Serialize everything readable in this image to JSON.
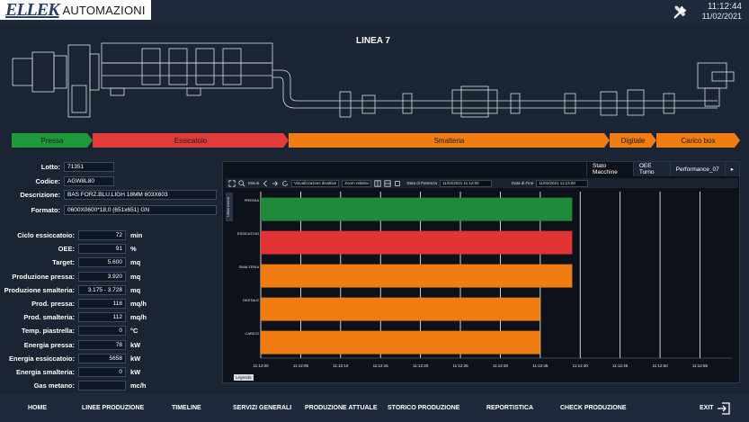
{
  "header": {
    "logo_main": "ELLEK",
    "logo_sub": "AUTOMAZIONI",
    "time": "11:12:44",
    "date": "11/02/2021",
    "tools_icon": "tools-icon"
  },
  "line_title": "LINEA 7",
  "process_segments": [
    {
      "label": "Pressa",
      "color": "#1e9a3c"
    },
    {
      "label": "Essicatoio",
      "color": "#e23b3b"
    },
    {
      "label": "Smalteria",
      "color": "#f07c12"
    },
    {
      "label": "Digitale",
      "color": "#f07c12"
    },
    {
      "label": "Carico box",
      "color": "#f07c12"
    }
  ],
  "info": {
    "lotto": {
      "label": "Lotto:",
      "value": "71351"
    },
    "codice": {
      "label": "Codice:",
      "value": "AGW8L80"
    },
    "descrizione": {
      "label": "Descrizione:",
      "value": "BAS FORZ.BLU.LIGH 18MM 603X603"
    },
    "formato": {
      "label": "Formato:",
      "value": "0600X0600*18,0 (651x651) GN"
    }
  },
  "metrics": [
    {
      "label": "Ciclo essiccatoio:",
      "value": "72",
      "unit": "min"
    },
    {
      "label": "OEE:",
      "value": "91",
      "unit": "%"
    },
    {
      "label": "Target:",
      "value": "5.600",
      "unit": "mq"
    },
    {
      "label": "Produzione pressa:",
      "value": "3.920",
      "unit": "mq"
    },
    {
      "label": "Produzione smalteria:",
      "value": "3.175 - 3.728",
      "unit": "mq"
    },
    {
      "label": "Prod. pressa:",
      "value": "118",
      "unit": "mq/h"
    },
    {
      "label": "Prod. smalteria:",
      "value": "112",
      "unit": "mq/h"
    },
    {
      "label": "Temp. piastrella:",
      "value": "0",
      "unit": "°C"
    },
    {
      "label": "Energia pressa:",
      "value": "78",
      "unit": "kW"
    },
    {
      "label": "Energia essiccatoio:",
      "value": "5658",
      "unit": "kW"
    },
    {
      "label": "Energia smalteria:",
      "value": "0",
      "unit": "kW"
    },
    {
      "label": "Gas metano:",
      "value": "",
      "unit": "mc/h"
    }
  ],
  "chart_panel": {
    "tabs": [
      "Stato Macchine",
      "OEE Turno",
      "Performance_07"
    ],
    "toolbar": {
      "minuti": "Minuti",
      "visualizza": "Visualizzazioni disattive",
      "zoom": "Zoom relativo",
      "data_partenza_label": "Data di Partenza",
      "data_partenza_value": "11/02/2021 11:12:00",
      "data_fine_label": "Data di Fine",
      "data_fine_value": "11/02/2021 11:13:00"
    },
    "side_tab": "Ultimi eventi",
    "legend_button": "Legenda"
  },
  "chart_data": {
    "type": "gantt",
    "rows": [
      {
        "name": "PRESSA",
        "color": "#1e8a3a",
        "start": "11:12:00",
        "end": "11:12:39"
      },
      {
        "name": "ESSICATOIO",
        "color": "#e23434",
        "start": "11:12:00",
        "end": "11:12:39"
      },
      {
        "name": "SMALTERIA",
        "color": "#f07c12",
        "start": "11:12:00",
        "end": "11:12:39"
      },
      {
        "name": "DIGITALE",
        "color": "#f07c12",
        "start": "11:12:00",
        "end": "11:12:35"
      },
      {
        "name": "CARICO",
        "color": "#f07c12",
        "start": "11:12:00",
        "end": "11:12:35"
      }
    ],
    "x_ticks": [
      "11:12:00",
      "11:12:05",
      "11:12:10",
      "11:12:15",
      "11:12:20",
      "11:12:25",
      "11:12:30",
      "11:12:35",
      "11:12:40",
      "11:12:45",
      "11:12:50",
      "11:12:55"
    ],
    "x_range": [
      "11:12:00",
      "11:12:59"
    ],
    "grid": true
  },
  "footer_nav": [
    "HOME",
    "LINEE PRODUZIONE",
    "TIMELINE",
    "SERVIZI GENERALI",
    "PRODUZIONE ATTUALE",
    "STORICO PRODUZIONE",
    "REPORTISTICA",
    "CHECK PRODUZIONE",
    "EXIT"
  ]
}
